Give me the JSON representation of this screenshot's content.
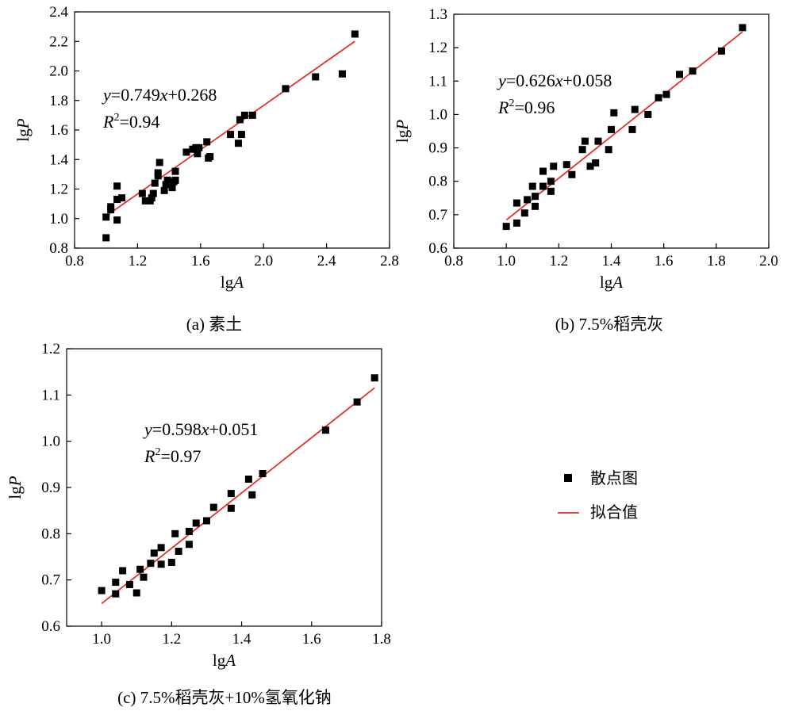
{
  "colors": {
    "points": "#000000",
    "fit_line": "#e8302a"
  },
  "legend": {
    "placement": "right-middle",
    "scatter_label": "散点图",
    "fit_label": "拟合值"
  },
  "chart_data": [
    {
      "type": "scatter",
      "caption": "(a) 素土",
      "xlabel": "lgA",
      "ylabel": "lgP",
      "xlim": [
        0.8,
        2.8
      ],
      "ylim": [
        0.8,
        2.4
      ],
      "xticks": [
        "0.8",
        "1.2",
        "1.6",
        "2.0",
        "2.4",
        "2.8"
      ],
      "yticks": [
        "0.8",
        "1.0",
        "1.2",
        "1.4",
        "1.6",
        "1.8",
        "2.0",
        "2.2",
        "2.4"
      ],
      "equation": "y=0.749x+0.268",
      "r2": "R2=0.94",
      "fit": {
        "slope": 0.749,
        "intercept": 0.268,
        "x_range": [
          1.0,
          2.58
        ]
      },
      "points": [
        [
          1.0,
          0.87
        ],
        [
          1.0,
          1.01
        ],
        [
          1.03,
          1.06
        ],
        [
          1.03,
          1.08
        ],
        [
          1.07,
          0.99
        ],
        [
          1.07,
          1.13
        ],
        [
          1.07,
          1.22
        ],
        [
          1.1,
          1.14
        ],
        [
          1.23,
          1.17
        ],
        [
          1.25,
          1.12
        ],
        [
          1.28,
          1.12
        ],
        [
          1.29,
          1.14
        ],
        [
          1.3,
          1.17
        ],
        [
          1.31,
          1.24
        ],
        [
          1.33,
          1.29
        ],
        [
          1.33,
          1.31
        ],
        [
          1.34,
          1.38
        ],
        [
          1.37,
          1.19
        ],
        [
          1.38,
          1.23
        ],
        [
          1.39,
          1.26
        ],
        [
          1.42,
          1.21
        ],
        [
          1.43,
          1.25
        ],
        [
          1.44,
          1.26
        ],
        [
          1.44,
          1.32
        ],
        [
          1.51,
          1.45
        ],
        [
          1.55,
          1.47
        ],
        [
          1.57,
          1.48
        ],
        [
          1.58,
          1.44
        ],
        [
          1.59,
          1.48
        ],
        [
          1.64,
          1.52
        ],
        [
          1.65,
          1.41
        ],
        [
          1.66,
          1.42
        ],
        [
          1.79,
          1.57
        ],
        [
          1.84,
          1.51
        ],
        [
          1.85,
          1.67
        ],
        [
          1.86,
          1.57
        ],
        [
          1.88,
          1.7
        ],
        [
          1.93,
          1.7
        ],
        [
          2.14,
          1.88
        ],
        [
          2.33,
          1.96
        ],
        [
          2.5,
          1.98
        ],
        [
          2.58,
          2.25
        ]
      ]
    },
    {
      "type": "scatter",
      "caption": "(b) 7.5%稻壳灰",
      "xlabel": "lgA",
      "ylabel": "lgP",
      "xlim": [
        0.8,
        2.0
      ],
      "ylim": [
        0.6,
        1.3
      ],
      "xticks": [
        "0.8",
        "1.0",
        "1.2",
        "1.4",
        "1.6",
        "1.8",
        "2.0"
      ],
      "yticks": [
        "0.6",
        "0.7",
        "0.8",
        "0.9",
        "1.0",
        "1.1",
        "1.2",
        "1.3"
      ],
      "equation": "y=0.626x+0.058",
      "r2": "R2=0.96",
      "fit": {
        "slope": 0.626,
        "intercept": 0.058,
        "x_range": [
          1.0,
          1.9
        ]
      },
      "points": [
        [
          1.0,
          0.665
        ],
        [
          1.04,
          0.675
        ],
        [
          1.04,
          0.735
        ],
        [
          1.07,
          0.705
        ],
        [
          1.08,
          0.745
        ],
        [
          1.1,
          0.785
        ],
        [
          1.11,
          0.725
        ],
        [
          1.11,
          0.755
        ],
        [
          1.14,
          0.785
        ],
        [
          1.14,
          0.83
        ],
        [
          1.17,
          0.77
        ],
        [
          1.17,
          0.8
        ],
        [
          1.18,
          0.845
        ],
        [
          1.23,
          0.85
        ],
        [
          1.25,
          0.82
        ],
        [
          1.29,
          0.895
        ],
        [
          1.3,
          0.92
        ],
        [
          1.32,
          0.845
        ],
        [
          1.34,
          0.855
        ],
        [
          1.35,
          0.92
        ],
        [
          1.39,
          0.895
        ],
        [
          1.4,
          0.955
        ],
        [
          1.41,
          1.005
        ],
        [
          1.48,
          0.955
        ],
        [
          1.49,
          1.015
        ],
        [
          1.54,
          1.0
        ],
        [
          1.58,
          1.05
        ],
        [
          1.61,
          1.06
        ],
        [
          1.66,
          1.12
        ],
        [
          1.71,
          1.13
        ],
        [
          1.82,
          1.19
        ],
        [
          1.9,
          1.26
        ]
      ]
    },
    {
      "type": "scatter",
      "caption": "(c) 7.5%稻壳灰+10%氢氧化钠",
      "xlabel": "lgA",
      "ylabel": "lgP",
      "xlim": [
        0.9,
        1.8
      ],
      "ylim": [
        0.6,
        1.2
      ],
      "xticks": [
        "1.0",
        "1.2",
        "1.4",
        "1.6",
        "1.8"
      ],
      "yticks": [
        "0.6",
        "0.7",
        "0.8",
        "0.9",
        "1.0",
        "1.1",
        "1.2"
      ],
      "equation": "y=0.598x+0.051",
      "r2": "R2=0.97",
      "fit": {
        "slope": 0.598,
        "intercept": 0.051,
        "x_range": [
          1.0,
          1.78
        ]
      },
      "points": [
        [
          1.0,
          0.677
        ],
        [
          1.04,
          0.67
        ],
        [
          1.04,
          0.695
        ],
        [
          1.06,
          0.72
        ],
        [
          1.08,
          0.69
        ],
        [
          1.1,
          0.672
        ],
        [
          1.11,
          0.723
        ],
        [
          1.12,
          0.706
        ],
        [
          1.14,
          0.736
        ],
        [
          1.15,
          0.758
        ],
        [
          1.17,
          0.77
        ],
        [
          1.17,
          0.734
        ],
        [
          1.2,
          0.738
        ],
        [
          1.21,
          0.8
        ],
        [
          1.22,
          0.762
        ],
        [
          1.25,
          0.777
        ],
        [
          1.25,
          0.805
        ],
        [
          1.27,
          0.823
        ],
        [
          1.3,
          0.828
        ],
        [
          1.32,
          0.857
        ],
        [
          1.37,
          0.887
        ],
        [
          1.37,
          0.855
        ],
        [
          1.42,
          0.918
        ],
        [
          1.43,
          0.884
        ],
        [
          1.46,
          0.93
        ],
        [
          1.64,
          1.024
        ],
        [
          1.73,
          1.085
        ],
        [
          1.78,
          1.137
        ]
      ]
    }
  ]
}
